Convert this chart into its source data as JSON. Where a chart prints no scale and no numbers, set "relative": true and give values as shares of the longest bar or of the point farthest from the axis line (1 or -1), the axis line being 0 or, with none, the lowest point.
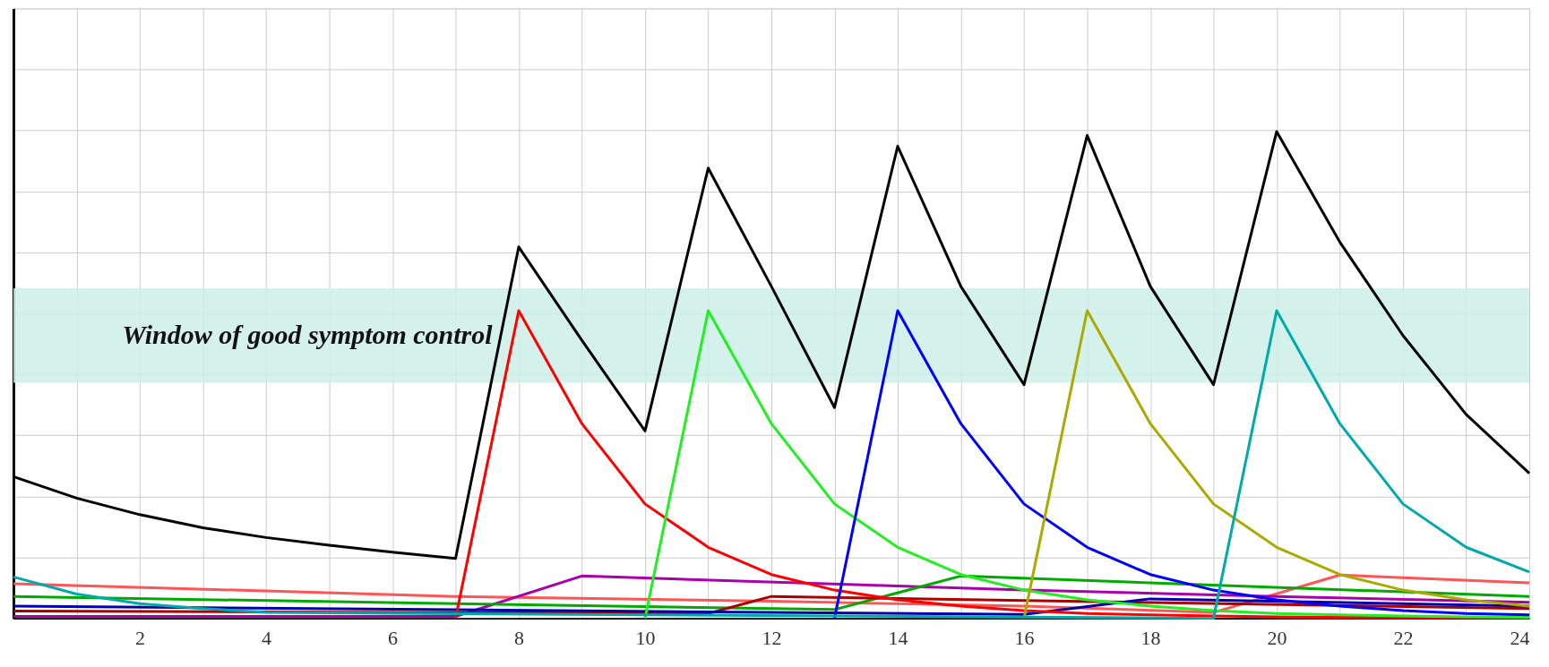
{
  "chart_data": {
    "type": "line",
    "relative": true,
    "grid": true,
    "legend": false,
    "marker": "none",
    "line_style": "solid",
    "xlim": [
      0,
      24
    ],
    "xticks": [
      {
        "value": 1,
        "label": null
      },
      2,
      {
        "value": 3,
        "label": null
      },
      4,
      {
        "value": 5,
        "label": null
      },
      6,
      {
        "value": 7,
        "label": null
      },
      8,
      {
        "value": 9,
        "label": null
      },
      10,
      {
        "value": 11,
        "label": null
      },
      12,
      {
        "value": 13,
        "label": null
      },
      14,
      {
        "value": 15,
        "label": null
      },
      16,
      {
        "value": 17,
        "label": null
      },
      18,
      {
        "value": 19,
        "label": null
      },
      20,
      {
        "value": 21,
        "label": null
      },
      22,
      {
        "value": 23,
        "label": null
      },
      24
    ],
    "bands": [
      {
        "axis": "y",
        "from": 0.484,
        "to": 0.678,
        "label": "Window of good symptom control",
        "color": "#cdeee8"
      }
    ],
    "series": [
      {
        "color": "#ff5555",
        "x": [
          0,
          7,
          12,
          16,
          19,
          21,
          24
        ],
        "values": [
          0.071,
          0.045,
          0.035,
          0.025,
          0.012,
          0.089,
          0.073
        ]
      },
      {
        "color": "#aa00aa",
        "x": [
          0,
          7,
          9,
          16,
          20,
          24
        ],
        "values": [
          0.004,
          0.004,
          0.087,
          0.058,
          0.045,
          0.033
        ]
      },
      {
        "color": "#00aa00",
        "x": [
          0,
          7,
          13,
          15,
          24
        ],
        "values": [
          0.045,
          0.03,
          0.018,
          0.087,
          0.045
        ]
      },
      {
        "color": "#aa0000",
        "x": [
          0,
          11,
          12,
          24
        ],
        "values": [
          0.015,
          0.01,
          0.045,
          0.02
        ]
      },
      {
        "color": "#0000aa",
        "x": [
          0,
          16,
          18,
          24
        ],
        "values": [
          0.025,
          0.008,
          0.04,
          0.025
        ]
      },
      {
        "color": "#ff0000",
        "x": [
          7,
          8,
          9,
          10,
          11,
          12,
          13,
          14,
          15,
          16,
          17,
          18,
          19,
          20,
          21,
          22,
          23,
          24
        ],
        "values": [
          0,
          0.632,
          0.4,
          0.235,
          0.146,
          0.09,
          0.058,
          0.038,
          0.025,
          0.016,
          0.01,
          0.007,
          0.005,
          0.003,
          0.002,
          0.002,
          0.001,
          0.001
        ]
      },
      {
        "color": "#22ee22",
        "x": [
          10,
          11,
          12,
          13,
          14,
          15,
          16,
          17,
          18,
          19,
          20,
          21,
          22,
          23,
          24
        ],
        "values": [
          0,
          0.632,
          0.4,
          0.235,
          0.146,
          0.09,
          0.058,
          0.038,
          0.025,
          0.016,
          0.01,
          0.007,
          0.005,
          0.003,
          0.002
        ]
      },
      {
        "color": "#0000ff",
        "x": [
          13,
          14,
          15,
          16,
          17,
          18,
          19,
          20,
          21,
          22,
          23,
          24
        ],
        "values": [
          0,
          0.632,
          0.4,
          0.235,
          0.146,
          0.09,
          0.058,
          0.038,
          0.025,
          0.016,
          0.01,
          0.007
        ]
      },
      {
        "color": "#aaaa00",
        "x": [
          16,
          17,
          18,
          19,
          20,
          21,
          22,
          23,
          24
        ],
        "values": [
          0,
          0.632,
          0.4,
          0.235,
          0.146,
          0.09,
          0.058,
          0.038,
          0.025
        ]
      },
      {
        "color": "#00aaaa",
        "x": [
          0,
          1,
          2,
          3,
          4,
          19,
          20,
          21,
          22,
          23,
          24
        ],
        "values": [
          0.085,
          0.05,
          0.03,
          0.02,
          0.012,
          0,
          0.632,
          0.4,
          0.235,
          0.146,
          0.095
        ]
      },
      {
        "color": "#000000",
        "x": [
          0,
          1,
          2,
          3,
          4,
          5,
          6,
          7,
          8,
          9,
          10,
          11,
          12,
          13,
          14,
          15,
          16,
          17,
          18,
          19,
          20,
          21,
          22,
          23,
          24
        ],
        "values": [
          0.291,
          0.247,
          0.213,
          0.186,
          0.166,
          0.15,
          0.136,
          0.123,
          0.763,
          0.571,
          0.385,
          0.925,
          0.682,
          0.433,
          0.97,
          0.682,
          0.48,
          0.992,
          0.682,
          0.48,
          1.0,
          0.773,
          0.581,
          0.419,
          0.298
        ]
      }
    ]
  }
}
